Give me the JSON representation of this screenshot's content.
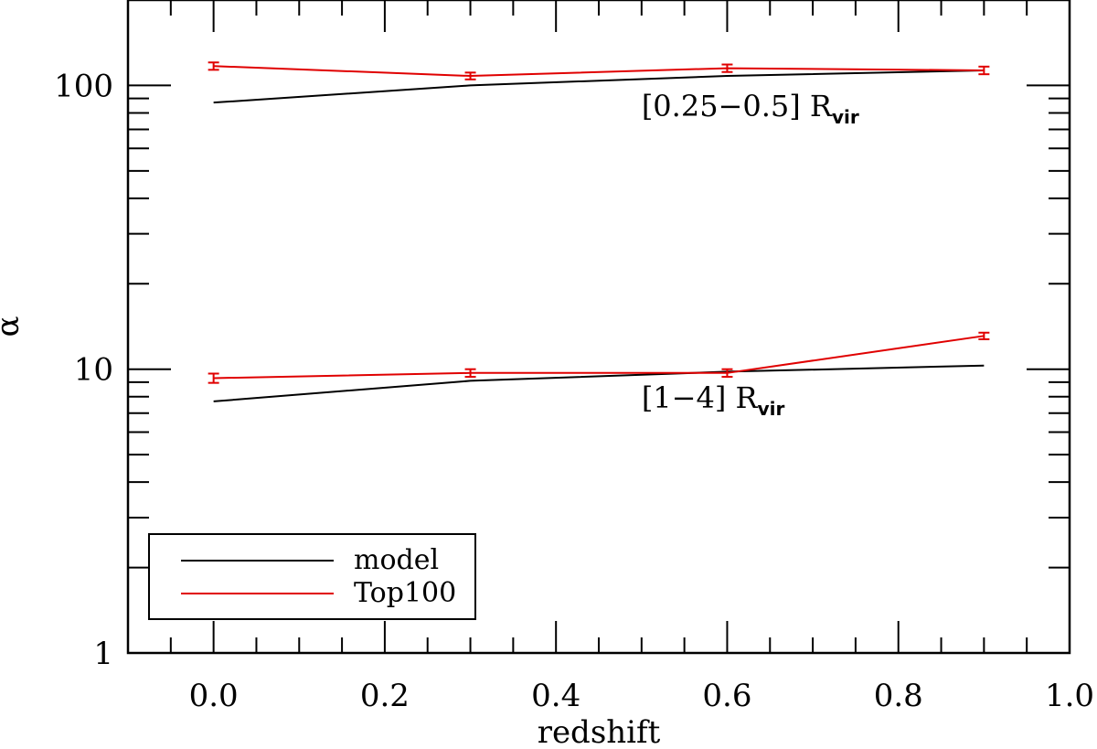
{
  "chart_data": {
    "type": "line",
    "xlabel": "redshift",
    "ylabel": "α",
    "xlim": [
      -0.1,
      1.0
    ],
    "ylim": [
      1,
      200
    ],
    "yscale": "log",
    "x_ticks": [
      {
        "value": 0.0,
        "label": "0.0"
      },
      {
        "value": 0.2,
        "label": "0.2"
      },
      {
        "value": 0.4,
        "label": "0.4"
      },
      {
        "value": 0.6,
        "label": "0.6"
      },
      {
        "value": 0.8,
        "label": "0.8"
      },
      {
        "value": 1.0,
        "label": "1.0"
      }
    ],
    "y_ticks": [
      {
        "value": 1,
        "label": "1"
      },
      {
        "value": 10,
        "label": "10"
      },
      {
        "value": 100,
        "label": "100"
      }
    ],
    "legend": {
      "placement": "bottom-left",
      "entries": [
        {
          "label": "model",
          "color": "#000000"
        },
        {
          "label": "Top100",
          "color": "#e00000"
        }
      ]
    },
    "series": [
      {
        "name": "model",
        "group": "[0.25-0.5] Rvir",
        "color": "#000000",
        "x": [
          0.0,
          0.3,
          0.6,
          0.9
        ],
        "y": [
          87,
          100,
          108,
          113
        ]
      },
      {
        "name": "Top100",
        "group": "[0.25-0.5] Rvir",
        "color": "#e00000",
        "x": [
          0.0,
          0.3,
          0.6,
          0.9
        ],
        "y": [
          117,
          108,
          115,
          113
        ],
        "yerr": [
          3.5,
          3.0,
          3.5,
          3.5
        ]
      },
      {
        "name": "model",
        "group": "[1-4] Rvir",
        "color": "#000000",
        "x": [
          0.0,
          0.3,
          0.6,
          0.9
        ],
        "y": [
          7.7,
          9.1,
          9.8,
          10.3
        ]
      },
      {
        "name": "Top100",
        "group": "[1-4] Rvir",
        "color": "#e00000",
        "x": [
          0.0,
          0.3,
          0.6,
          0.9
        ],
        "y": [
          9.3,
          9.7,
          9.7,
          13.1
        ],
        "yerr": [
          0.35,
          0.3,
          0.3,
          0.35
        ]
      }
    ],
    "annotations": [
      {
        "text": "[0.25−0.5] R",
        "sub": "vir",
        "x": 0.5,
        "y": 78
      },
      {
        "text": "[1−4] R",
        "sub": "vir",
        "x": 0.5,
        "y": 7.3
      }
    ]
  }
}
